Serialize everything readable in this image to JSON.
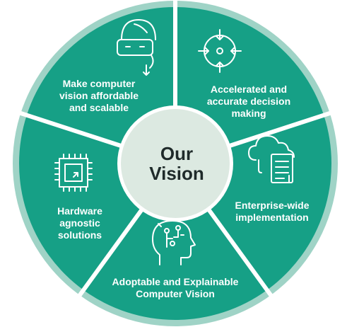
{
  "center": {
    "line1": "Our",
    "line2": "Vision"
  },
  "segments": [
    {
      "lines": [
        "Make computer",
        "vision affordable",
        "and scalable"
      ],
      "icon": "vr-headset-icon"
    },
    {
      "lines": [
        "Accelerated and",
        "accurate decision",
        "making"
      ],
      "icon": "crosshair-target-icon"
    },
    {
      "lines": [
        "Enterprise-wide",
        "implementation"
      ],
      "icon": "cloud-document-icon"
    },
    {
      "lines": [
        "Adoptable and Explainable",
        "Computer Vision"
      ],
      "icon": "ai-head-circuit-icon"
    },
    {
      "lines": [
        "Hardware",
        "agnostic",
        "solutions"
      ],
      "icon": "microchip-icon"
    }
  ],
  "colors": {
    "segment": "#16a086",
    "ring": "#9fd3c6",
    "hub": "#dce9e1",
    "hub_text": "#1f2a2a",
    "divider": "#ffffff"
  }
}
